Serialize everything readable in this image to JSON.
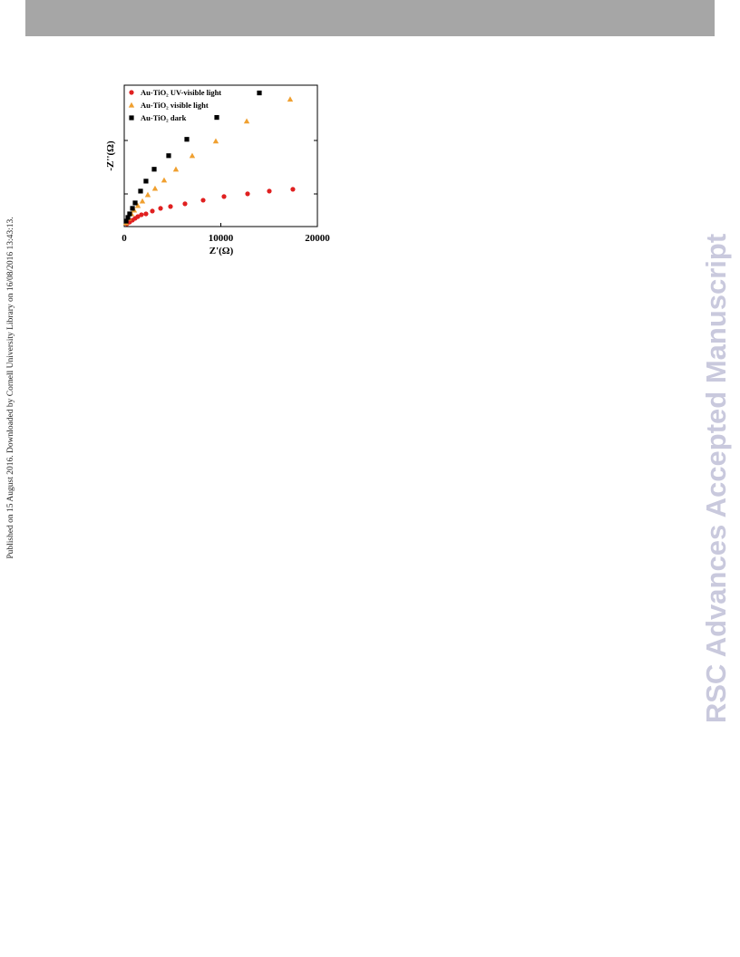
{
  "side_note": "Published on 15 August 2016. Downloaded by Cornell University Library on 16/08/2016 13:43:13.",
  "watermark": "RSC Advances Accepted Manuscript",
  "chart_data": {
    "type": "scatter",
    "x_label": "Z'(Ω)",
    "y_label": "-Z''(Ω)",
    "xlim": [
      0,
      20000
    ],
    "ylim": [
      0,
      14600
    ],
    "xticks": [
      0,
      10000,
      20000
    ],
    "legend": "top-left",
    "series": [
      {
        "name": "Au-TiO₂ UV-visible light",
        "color": "#e02020",
        "marker": "circle",
        "x": [
          280,
          560,
          850,
          1130,
          1410,
          1780,
          2250,
          2910,
          3760,
          4790,
          6290,
          8170,
          10330,
          12770,
          15020,
          17460
        ],
        "values": [
          280,
          470,
          660,
          850,
          1030,
          1220,
          1310,
          1600,
          1880,
          2070,
          2350,
          2720,
          3100,
          3380,
          3660,
          3850
        ]
      },
      {
        "name": "Au-TiO₂ visible light",
        "color": "#f0a030",
        "marker": "triangle",
        "x": [
          190,
          470,
          750,
          1030,
          1410,
          1880,
          2440,
          3190,
          4130,
          5350,
          7040,
          9480,
          12680,
          17180
        ],
        "values": [
          380,
          850,
          1310,
          1690,
          2160,
          2630,
          3290,
          3940,
          4790,
          5920,
          7320,
          8830,
          10890,
          13150
        ]
      },
      {
        "name": "Au-TiO₂ dark",
        "color": "#000000",
        "marker": "square",
        "x": [
          190,
          380,
          560,
          850,
          1130,
          1690,
          2250,
          3100,
          4600,
          6480,
          9580,
          13990
        ],
        "values": [
          560,
          940,
          1310,
          1880,
          2440,
          3660,
          4690,
          5920,
          7320,
          9010,
          11270,
          13800
        ]
      }
    ]
  }
}
